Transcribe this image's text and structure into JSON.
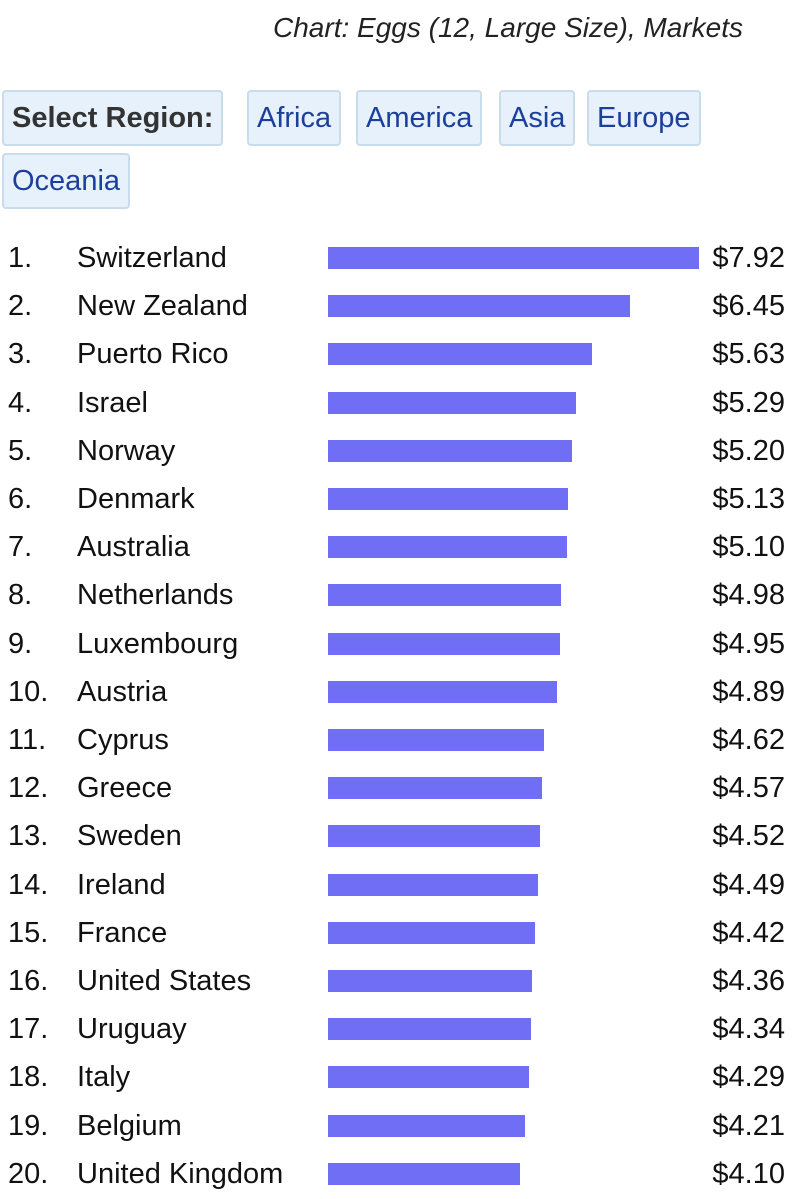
{
  "title": "Chart: Eggs (12, Large Size), Markets",
  "region_selector": {
    "label": "Select Region:",
    "regions": [
      "Africa",
      "America",
      "Asia",
      "Europe",
      "Oceania"
    ]
  },
  "colors": {
    "bar": "#6f6ef5",
    "button_bg": "#e6f1fb",
    "button_text": "#1c3f9c"
  },
  "chart_data": {
    "type": "bar",
    "orientation": "horizontal",
    "title": "Chart: Eggs (12, Large Size), Markets",
    "xlim": [
      0,
      7.92
    ],
    "grid": false,
    "rows": [
      {
        "rank": "1.",
        "country": "Switzerland",
        "value": 7.92,
        "label": "$7.92"
      },
      {
        "rank": "2.",
        "country": "New Zealand",
        "value": 6.45,
        "label": "$6.45"
      },
      {
        "rank": "3.",
        "country": "Puerto Rico",
        "value": 5.63,
        "label": "$5.63"
      },
      {
        "rank": "4.",
        "country": "Israel",
        "value": 5.29,
        "label": "$5.29"
      },
      {
        "rank": "5.",
        "country": "Norway",
        "value": 5.2,
        "label": "$5.20"
      },
      {
        "rank": "6.",
        "country": "Denmark",
        "value": 5.13,
        "label": "$5.13"
      },
      {
        "rank": "7.",
        "country": "Australia",
        "value": 5.1,
        "label": "$5.10"
      },
      {
        "rank": "8.",
        "country": "Netherlands",
        "value": 4.98,
        "label": "$4.98"
      },
      {
        "rank": "9.",
        "country": "Luxembourg",
        "value": 4.95,
        "label": "$4.95"
      },
      {
        "rank": "10.",
        "country": "Austria",
        "value": 4.89,
        "label": "$4.89"
      },
      {
        "rank": "11.",
        "country": "Cyprus",
        "value": 4.62,
        "label": "$4.62"
      },
      {
        "rank": "12.",
        "country": "Greece",
        "value": 4.57,
        "label": "$4.57"
      },
      {
        "rank": "13.",
        "country": "Sweden",
        "value": 4.52,
        "label": "$4.52"
      },
      {
        "rank": "14.",
        "country": "Ireland",
        "value": 4.49,
        "label": "$4.49"
      },
      {
        "rank": "15.",
        "country": "France",
        "value": 4.42,
        "label": "$4.42"
      },
      {
        "rank": "16.",
        "country": "United States",
        "value": 4.36,
        "label": "$4.36"
      },
      {
        "rank": "17.",
        "country": "Uruguay",
        "value": 4.34,
        "label": "$4.34"
      },
      {
        "rank": "18.",
        "country": "Italy",
        "value": 4.29,
        "label": "$4.29"
      },
      {
        "rank": "19.",
        "country": "Belgium",
        "value": 4.21,
        "label": "$4.21"
      },
      {
        "rank": "20.",
        "country": "United Kingdom",
        "value": 4.1,
        "label": "$4.10"
      }
    ]
  }
}
